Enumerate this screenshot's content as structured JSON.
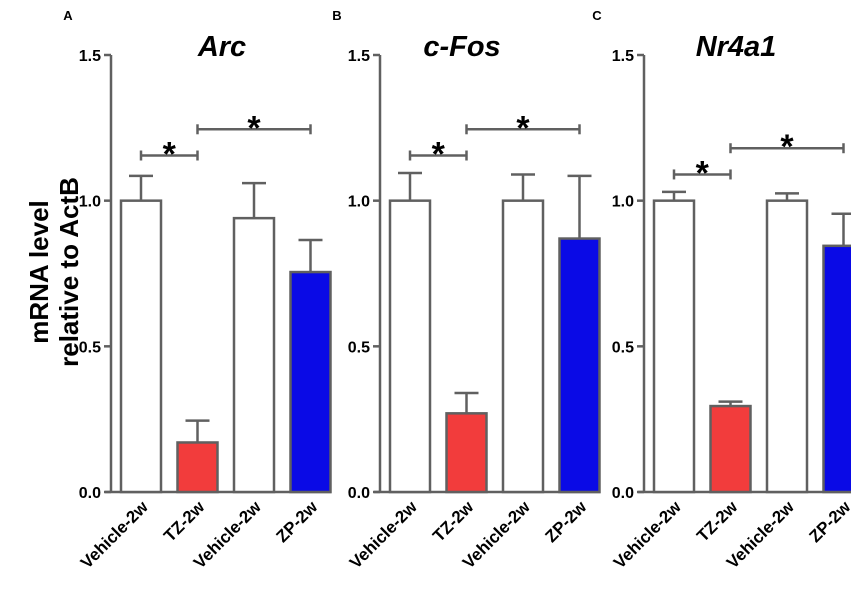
{
  "chart_data": [
    {
      "type": "bar",
      "panel": "A",
      "title": "Arc",
      "ylabel": "mRNA level relative to ActB",
      "ylim": [
        0,
        1.5
      ],
      "yticks": [
        "0.0",
        "0.5",
        "1.0",
        "1.5"
      ],
      "categories": [
        "Vehicle-2w",
        "TZ-2w",
        "Vehicle-2w",
        "ZP-2w"
      ],
      "values": [
        1.0,
        0.17,
        0.94,
        0.755
      ],
      "errors": [
        0.085,
        0.075,
        0.12,
        0.11
      ],
      "colors": [
        "#ffffff",
        "#f23c3c",
        "#ffffff",
        "#0a0ae6"
      ],
      "significance": [
        {
          "from": 0,
          "to": 1,
          "y": 1.155,
          "label": "*"
        },
        {
          "from": 1,
          "to": 3,
          "y": 1.245,
          "label": "*"
        }
      ]
    },
    {
      "type": "bar",
      "panel": "B",
      "title": "c-Fos",
      "ylabel": "",
      "ylim": [
        0,
        1.5
      ],
      "yticks": [
        "0.0",
        "0.5",
        "1.0",
        "1.5"
      ],
      "categories": [
        "Vehicle-2w",
        "TZ-2w",
        "Vehicle-2w",
        "ZP-2w"
      ],
      "values": [
        1.0,
        0.27,
        1.0,
        0.87
      ],
      "errors": [
        0.095,
        0.07,
        0.09,
        0.215
      ],
      "colors": [
        "#ffffff",
        "#f23c3c",
        "#ffffff",
        "#0a0ae6"
      ],
      "significance": [
        {
          "from": 0,
          "to": 1,
          "y": 1.155,
          "label": "*"
        },
        {
          "from": 1,
          "to": 3,
          "y": 1.245,
          "label": "*"
        }
      ]
    },
    {
      "type": "bar",
      "panel": "C",
      "title": "Nr4a1",
      "ylabel": "",
      "ylim": [
        0,
        1.5
      ],
      "yticks": [
        "0.0",
        "0.5",
        "1.0",
        "1.5"
      ],
      "categories": [
        "Vehicle-2w",
        "TZ-2w",
        "Vehicle-2w",
        "ZP-2w"
      ],
      "values": [
        1.0,
        0.295,
        1.0,
        0.845
      ],
      "errors": [
        0.03,
        0.015,
        0.025,
        0.11
      ],
      "colors": [
        "#ffffff",
        "#f23c3c",
        "#ffffff",
        "#0a0ae6"
      ],
      "significance": [
        {
          "from": 0,
          "to": 1,
          "y": 1.09,
          "label": "*"
        },
        {
          "from": 1,
          "to": 3,
          "y": 1.18,
          "label": "*"
        }
      ]
    }
  ],
  "ylabel_line1": "mRNA level",
  "ylabel_line2": "relative to ActB"
}
